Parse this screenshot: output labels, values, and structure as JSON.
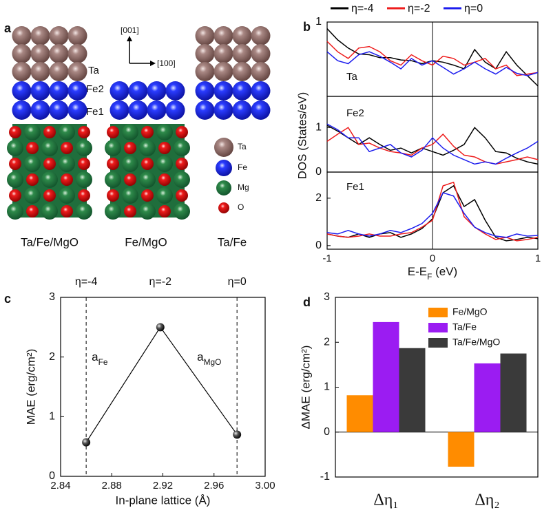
{
  "structure": {
    "panel": "a",
    "layer_labels": [
      "Ta",
      "Fe2",
      "Fe1"
    ],
    "axis_labels": [
      "[001]",
      "[100]"
    ],
    "legend": [
      "Ta",
      "Fe",
      "Mg",
      "O"
    ],
    "captions": [
      "Ta/Fe/MgO",
      "Fe/MgO",
      "Ta/Fe"
    ]
  },
  "chart_data": [
    {
      "type": "line",
      "panel": "b",
      "label": "Ta",
      "ylabel": "DOS (States/eV)",
      "xlim": [
        -1,
        1
      ],
      "ylim": [
        0,
        1
      ],
      "yticks": [
        1
      ],
      "vline": 0,
      "x": [
        -1,
        -0.9,
        -0.8,
        -0.7,
        -0.6,
        -0.5,
        -0.4,
        -0.3,
        -0.2,
        -0.1,
        0,
        0.1,
        0.2,
        0.3,
        0.4,
        0.5,
        0.6,
        0.7,
        0.8,
        0.9,
        1
      ],
      "series": [
        {
          "name": "η=-4",
          "color": "#000000",
          "values": [
            0.91,
            0.76,
            0.65,
            0.57,
            0.56,
            0.52,
            0.52,
            0.49,
            0.48,
            0.44,
            0.48,
            0.46,
            0.42,
            0.37,
            0.63,
            0.46,
            0.37,
            0.6,
            0.42,
            0.28,
            0.14
          ]
        },
        {
          "name": "η=-2",
          "color": "#ee1c1c",
          "values": [
            0.74,
            0.6,
            0.51,
            0.65,
            0.67,
            0.6,
            0.48,
            0.42,
            0.56,
            0.48,
            0.42,
            0.54,
            0.51,
            0.42,
            0.46,
            0.51,
            0.37,
            0.42,
            0.28,
            0.3,
            0.32
          ]
        },
        {
          "name": "η=0",
          "color": "#1c1cee",
          "values": [
            0.6,
            0.48,
            0.44,
            0.56,
            0.6,
            0.54,
            0.46,
            0.37,
            0.51,
            0.42,
            0.48,
            0.39,
            0.3,
            0.37,
            0.46,
            0.37,
            0.3,
            0.39,
            0.31,
            0.28,
            0.32
          ]
        }
      ]
    },
    {
      "type": "line",
      "label": "Fe2",
      "xlim": [
        -1,
        1
      ],
      "ylim": [
        0,
        1.7
      ],
      "yticks": [
        0,
        1
      ],
      "vline": 0,
      "x": [
        -1,
        -0.9,
        -0.8,
        -0.7,
        -0.6,
        -0.5,
        -0.4,
        -0.3,
        -0.2,
        -0.1,
        0,
        0.1,
        0.2,
        0.3,
        0.4,
        0.5,
        0.6,
        0.7,
        0.8,
        0.9,
        1
      ],
      "series": [
        {
          "color": "#000000",
          "values": [
            1.05,
            0.92,
            0.77,
            0.62,
            0.77,
            0.62,
            0.49,
            0.54,
            0.43,
            0.54,
            0.46,
            0.38,
            0.49,
            0.62,
            1.0,
            0.77,
            0.46,
            0.43,
            0.31,
            0.23,
            0.18
          ]
        },
        {
          "color": "#ee1c1c",
          "values": [
            0.69,
            0.85,
            1.0,
            0.62,
            0.65,
            0.54,
            0.46,
            0.43,
            0.38,
            0.54,
            0.62,
            0.85,
            0.58,
            0.38,
            0.34,
            0.23,
            0.18,
            0.23,
            0.28,
            0.34,
            0.28
          ]
        },
        {
          "color": "#1c1cee",
          "values": [
            1.08,
            0.95,
            0.77,
            0.77,
            0.46,
            0.54,
            0.62,
            0.43,
            0.34,
            0.49,
            0.77,
            0.54,
            0.38,
            0.28,
            0.18,
            0.23,
            0.18,
            0.31,
            0.43,
            0.54,
            0.69
          ]
        }
      ]
    },
    {
      "type": "line",
      "label": "Fe1",
      "xlabel": {
        "text": "E-E",
        "sub": "F",
        "tail": " (eV)"
      },
      "xlim": [
        -1,
        1
      ],
      "xticks": [
        -1,
        0,
        1
      ],
      "ylim": [
        -0.15,
        3.1
      ],
      "yticks": [
        0,
        2
      ],
      "vline": 0,
      "x": [
        -1,
        -0.9,
        -0.8,
        -0.7,
        -0.6,
        -0.5,
        -0.4,
        -0.3,
        -0.2,
        -0.1,
        0,
        0.1,
        0.2,
        0.3,
        0.4,
        0.5,
        0.6,
        0.7,
        0.8,
        0.9,
        1
      ],
      "series": [
        {
          "color": "#000000",
          "values": [
            0.49,
            0.4,
            0.35,
            0.49,
            0.35,
            0.49,
            0.55,
            0.35,
            0.49,
            0.72,
            1.13,
            2.23,
            2.52,
            1.65,
            1.94,
            1.07,
            0.35,
            0.2,
            0.26,
            0.35,
            0.29
          ]
        },
        {
          "color": "#ee1c1c",
          "values": [
            0.49,
            0.4,
            0.35,
            0.4,
            0.49,
            0.4,
            0.4,
            0.49,
            0.55,
            0.78,
            1.07,
            2.52,
            2.67,
            1.22,
            0.78,
            0.49,
            0.26,
            0.35,
            0.2,
            0.26,
            0.35
          ]
        },
        {
          "color": "#1c1cee",
          "values": [
            0.55,
            0.49,
            0.64,
            0.49,
            0.4,
            0.49,
            0.64,
            0.55,
            0.72,
            0.93,
            1.36,
            2.23,
            2.09,
            1.36,
            0.78,
            0.55,
            0.4,
            0.35,
            0.49,
            0.4,
            0.43
          ]
        }
      ]
    },
    {
      "type": "line",
      "panel": "c",
      "xlabel": "In-plane lattice (Å)",
      "ylabel": "MAE (erg/cm²)",
      "markers": true,
      "xlim": [
        2.84,
        3.0
      ],
      "xticks": [
        2.84,
        2.88,
        2.92,
        2.96,
        {
          "value": 3.0,
          "label": "3.00"
        }
      ],
      "ylim": [
        0,
        3
      ],
      "yticks": [
        0,
        1,
        2,
        3
      ],
      "x": [
        2.86,
        2.918,
        2.978
      ],
      "top_labels": [
        "η=-4",
        "η=-2",
        "η=0"
      ],
      "vlines": [
        2.86,
        2.978
      ],
      "annotations": [
        {
          "text": "a",
          "sub": "Fe"
        },
        {
          "text": "a",
          "sub": "MgO"
        }
      ],
      "series": [
        {
          "color": "#000000",
          "values": [
            0.57,
            2.5,
            0.7
          ]
        }
      ]
    },
    {
      "type": "bar",
      "panel": "d",
      "ylabel": "ΔMAE (erg/cm²)",
      "categories": [
        "Δη₁",
        "Δη₂"
      ],
      "ylim": [
        -1,
        3
      ],
      "yticks": [
        -1,
        0,
        1,
        2,
        3
      ],
      "series": [
        {
          "name": "Fe/MgO",
          "color": "#ff8c00",
          "values": [
            0.82,
            -0.77
          ]
        },
        {
          "name": "Ta/Fe",
          "color": "#9b1cf2",
          "values": [
            2.45,
            1.53
          ]
        },
        {
          "name": "Ta/Fe/MgO",
          "color": "#3a3a3a",
          "values": [
            1.87,
            1.75
          ]
        }
      ]
    }
  ]
}
